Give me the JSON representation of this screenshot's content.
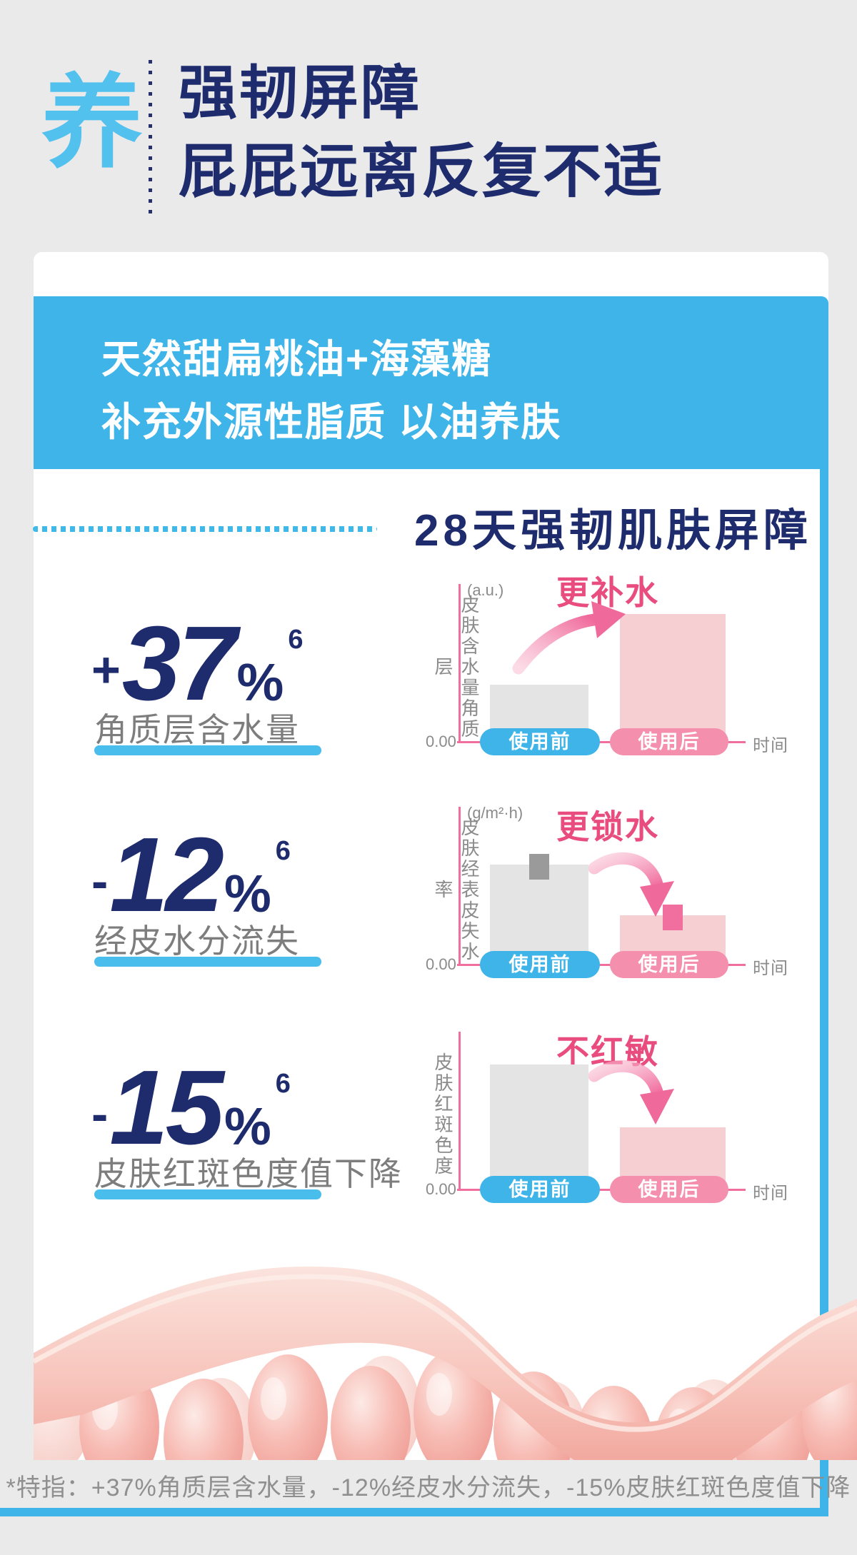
{
  "header": {
    "badge": "养",
    "title_line1": "强韧屏障",
    "title_line2": "屁屁远离反复不适"
  },
  "banner": {
    "line1": "天然甜扁桃油+海藻糖",
    "line2": "补充外源性脂质 以油养肤"
  },
  "section_title": "28天强韧肌肤屏障",
  "stats": [
    {
      "sign": "+",
      "digits": "37",
      "percent": "%",
      "sup": "6",
      "label": "角质层含水量"
    },
    {
      "sign": "-",
      "digits": "12",
      "percent": "%",
      "sup": "6",
      "label": "经皮水分流失"
    },
    {
      "sign": "-",
      "digits": "15",
      "percent": "%",
      "sup": "6",
      "label": "皮肤红斑色度值下降"
    }
  ],
  "chart_data": [
    {
      "type": "bar",
      "title": "更补水",
      "unit": "(a.u.)",
      "ylabel": "皮肤含水量角质层",
      "xlabel": "时间",
      "origin_label": "0.00",
      "categories": [
        "使用前",
        "使用后"
      ],
      "values_relative": [
        0.37,
        0.82
      ],
      "trend": "up",
      "error_bars": false,
      "bar_colors": [
        "#E4E4E4",
        "#F6CFD3"
      ],
      "legend_position": "x-axis-pills"
    },
    {
      "type": "bar",
      "title": "更锁水",
      "unit": "(g/m²·h)",
      "ylabel": "皮肤经表皮失水率",
      "xlabel": "时间",
      "origin_label": "0.00",
      "categories": [
        "使用前",
        "使用后"
      ],
      "values_relative": [
        0.64,
        0.32
      ],
      "trend": "down",
      "error_bars": true,
      "bar_colors": [
        "#E4E4E4",
        "#F6CFD3"
      ],
      "legend_position": "x-axis-pills"
    },
    {
      "type": "bar",
      "title": "不红敏",
      "unit": "",
      "ylabel": "皮肤红斑色度",
      "xlabel": "时间",
      "origin_label": "0.00",
      "categories": [
        "使用前",
        "使用后"
      ],
      "values_relative": [
        0.8,
        0.4
      ],
      "trend": "down",
      "error_bars": false,
      "bar_colors": [
        "#E4E4E4",
        "#F6CFD3"
      ],
      "legend_position": "x-axis-pills"
    }
  ],
  "footer": {
    "note": "*特指：+37%角质层含水量，-12%经皮水分流失，-15%皮肤红斑色度值下降"
  },
  "colors": {
    "accent_blue": "#3EB4E8",
    "cyan_accent": "#49BDEC",
    "navy": "#1E2C6E",
    "claim_pink": "#E94C7E",
    "pill_pink": "#F48FAE",
    "axis_pink": "#F06F9E",
    "bar_gray": "#E4E4E4",
    "bar_pink": "#F6CFD3",
    "page_bg": "#EAEAEA"
  }
}
